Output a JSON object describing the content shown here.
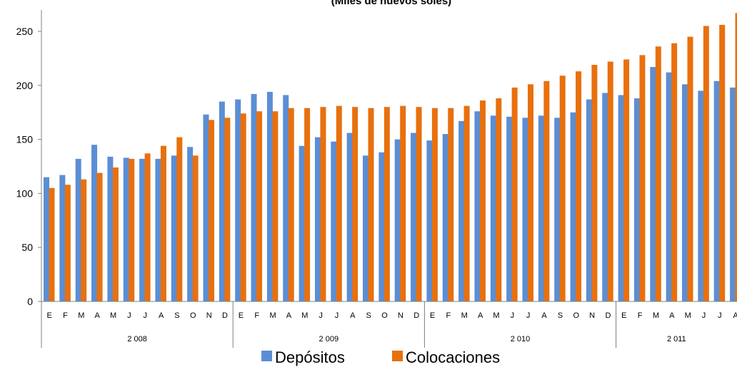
{
  "chart_data": {
    "type": "bar",
    "title": "(Miles de nuevos soles)",
    "ylim": [
      0,
      250
    ],
    "yticks": [
      0,
      50,
      100,
      150,
      200,
      250
    ],
    "grid": false,
    "legend_position": "bottom",
    "categories": [
      "E",
      "F",
      "M",
      "A",
      "M",
      "J",
      "J",
      "A",
      "S",
      "O",
      "N",
      "D",
      "E",
      "F",
      "M",
      "A",
      "M",
      "J",
      "J",
      "A",
      "S",
      "O",
      "N",
      "D",
      "E",
      "F",
      "M",
      "A",
      "M",
      "J",
      "J",
      "A",
      "S",
      "O",
      "N",
      "D",
      "E",
      "F",
      "M",
      "A",
      "M",
      "J",
      "J",
      "A"
    ],
    "groups": [
      {
        "label": "2 008",
        "count": 12
      },
      {
        "label": "2 009",
        "count": 12
      },
      {
        "label": "2 010",
        "count": 12
      },
      {
        "label": "2 011",
        "count": 8
      }
    ],
    "series": [
      {
        "name": "Depósitos",
        "color": "#5B8ED4",
        "values": [
          115,
          117,
          132,
          145,
          134,
          133,
          132,
          132,
          135,
          143,
          173,
          185,
          187,
          192,
          194,
          191,
          144,
          152,
          148,
          156,
          135,
          138,
          150,
          156,
          149,
          155,
          167,
          176,
          172,
          171,
          170,
          172,
          170,
          175,
          187,
          193,
          191,
          188,
          217,
          212,
          201,
          195,
          204,
          198
        ]
      },
      {
        "name": "Colocaciones",
        "color": "#E8700E",
        "values": [
          105,
          108,
          113,
          119,
          124,
          132,
          137,
          144,
          152,
          135,
          168,
          170,
          174,
          176,
          176,
          179,
          179,
          180,
          181,
          180,
          179,
          180,
          181,
          180,
          179,
          179,
          181,
          186,
          188,
          198,
          201,
          204,
          209,
          213,
          219,
          222,
          224,
          228,
          236,
          239,
          245,
          255,
          256,
          267
        ]
      }
    ]
  }
}
